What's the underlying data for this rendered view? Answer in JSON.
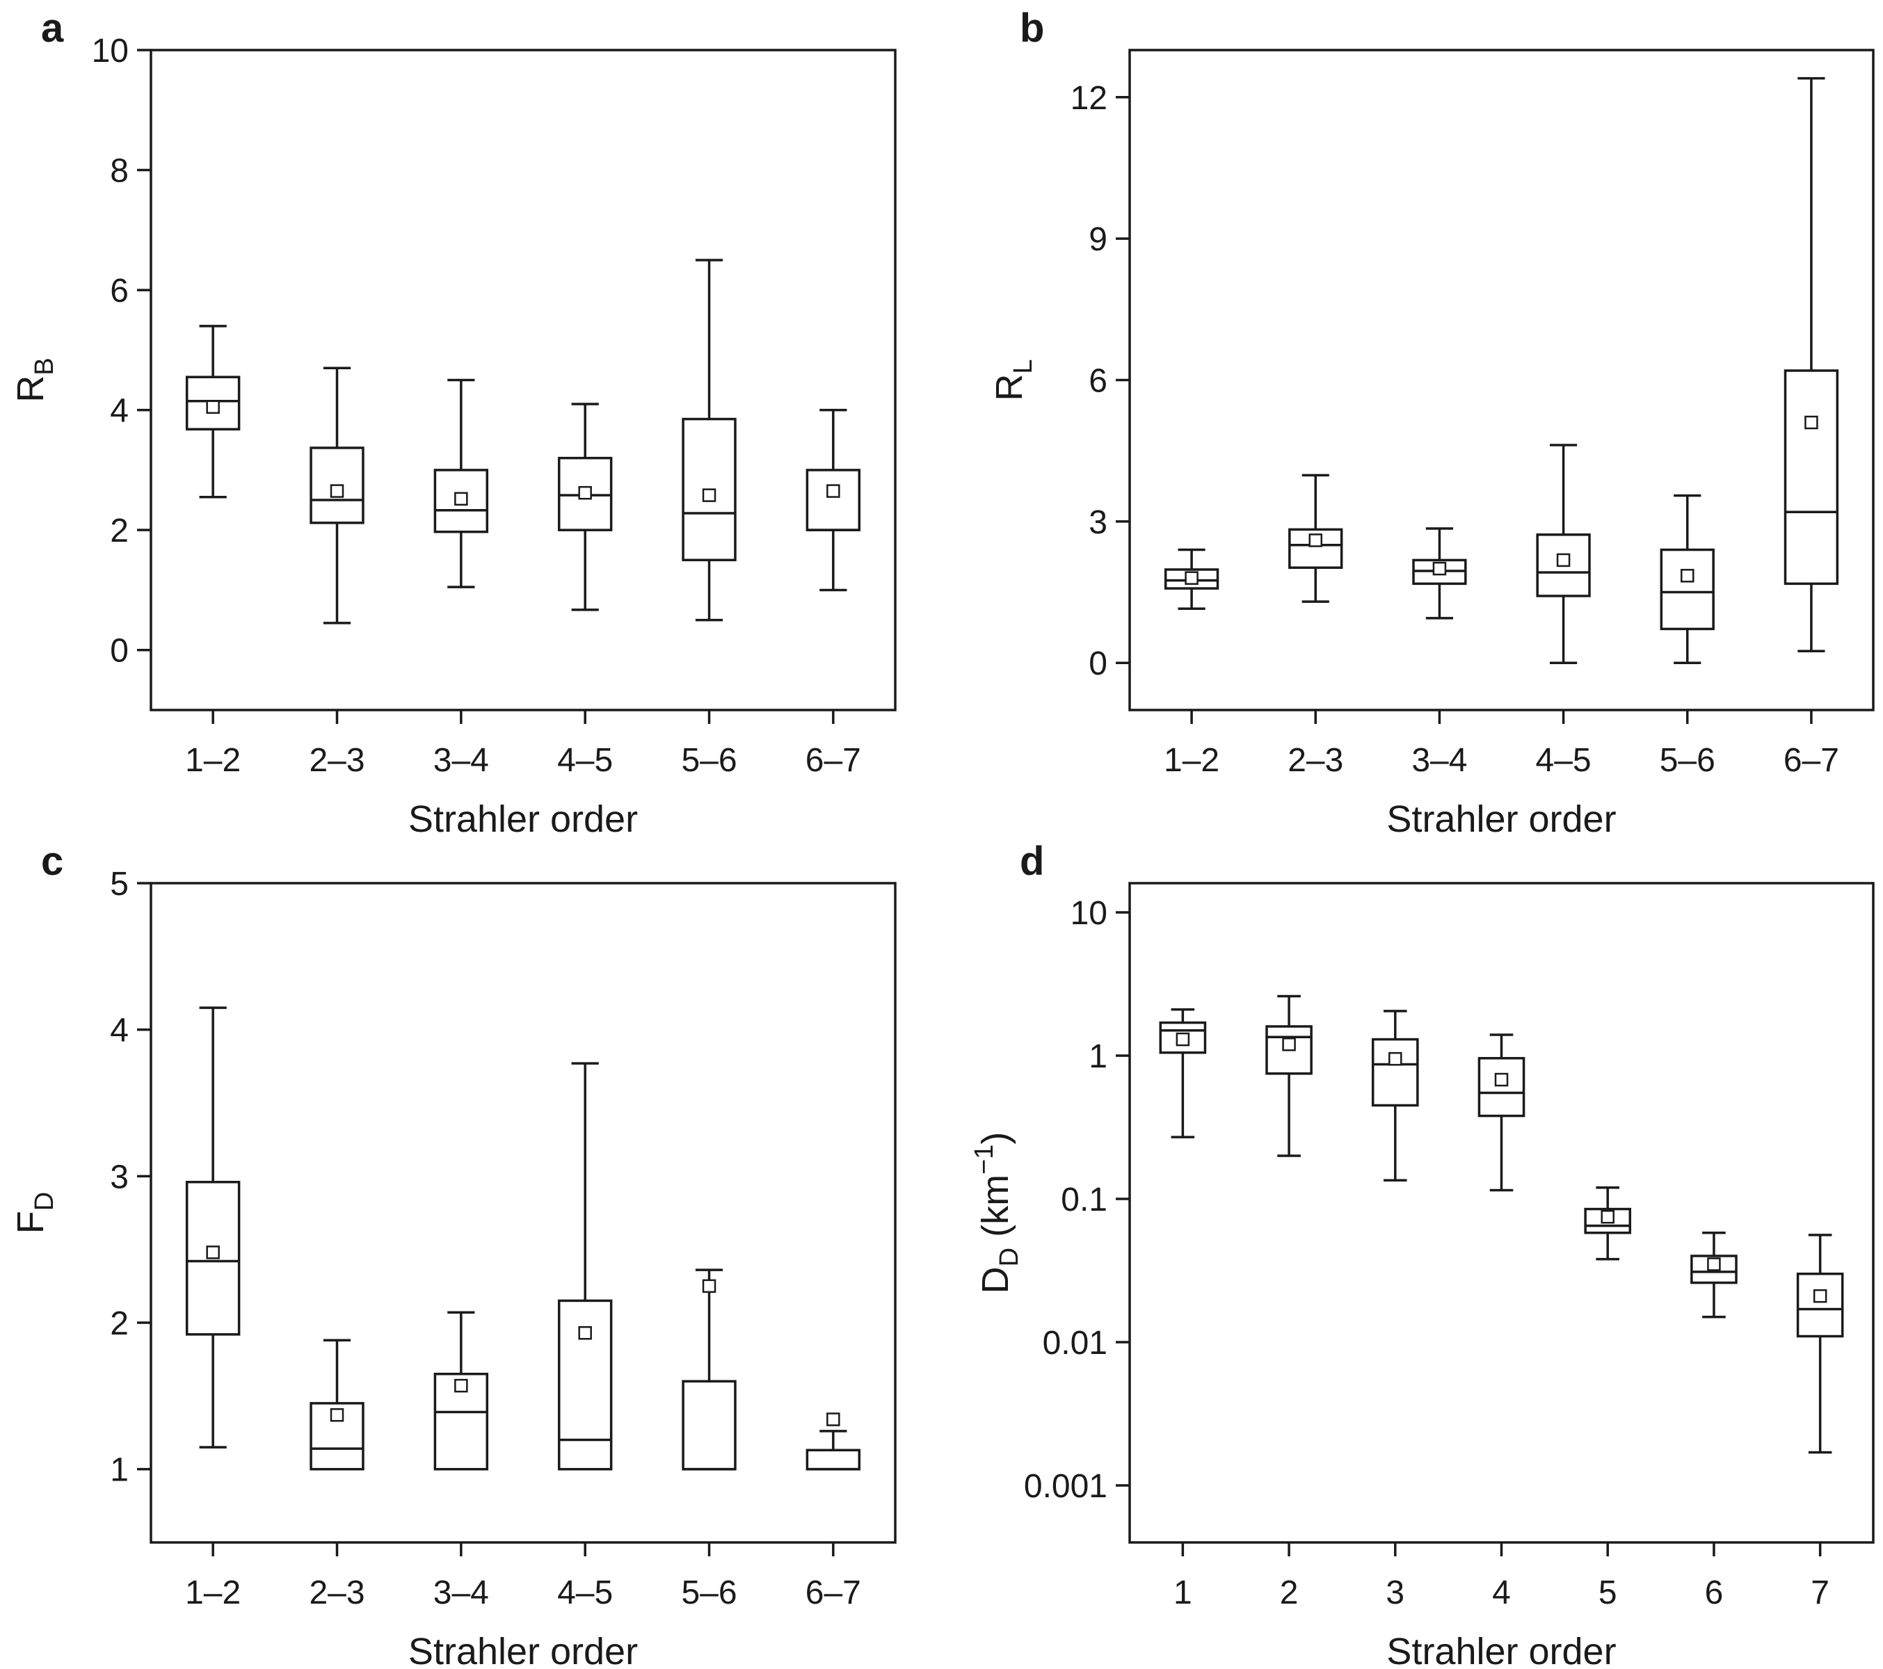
{
  "chart_data": [
    {
      "id": "a",
      "type": "box",
      "panel_label": "a",
      "ylabel_main": "R",
      "ylabel_sub": "B",
      "ylabel_tail": "",
      "xlabel": "Strahler order",
      "yscale": "linear",
      "ylim": [
        -1,
        10
      ],
      "yticks": [
        0,
        2,
        4,
        6,
        8,
        10
      ],
      "ytick_labels": [
        "0",
        "2",
        "4",
        "6",
        "8",
        "10"
      ],
      "categories": [
        "1–2",
        "2–3",
        "3–4",
        "4–5",
        "5–6",
        "6–7"
      ],
      "boxes": [
        {
          "min": 2.55,
          "q1": 3.68,
          "median": 4.15,
          "q3": 4.55,
          "max": 5.4,
          "mean": 4.05
        },
        {
          "min": 0.45,
          "q1": 2.12,
          "median": 2.5,
          "q3": 3.37,
          "max": 4.7,
          "mean": 2.65
        },
        {
          "min": 1.05,
          "q1": 1.97,
          "median": 2.33,
          "q3": 3.0,
          "max": 4.5,
          "mean": 2.52
        },
        {
          "min": 0.67,
          "q1": 2.0,
          "median": 2.58,
          "q3": 3.2,
          "max": 4.1,
          "mean": 2.62
        },
        {
          "min": 0.5,
          "q1": 1.5,
          "median": 2.28,
          "q3": 3.85,
          "max": 6.5,
          "mean": 2.58
        },
        {
          "min": 1.0,
          "q1": 2.0,
          "median": 2.0,
          "q3": 3.0,
          "max": 4.0,
          "mean": 2.65
        }
      ]
    },
    {
      "id": "b",
      "type": "box",
      "panel_label": "b",
      "ylabel_main": "R",
      "ylabel_sub": "L",
      "ylabel_tail": "",
      "xlabel": "Strahler order",
      "yscale": "linear",
      "ylim": [
        -1,
        13
      ],
      "yticks": [
        0,
        3,
        6,
        9,
        12
      ],
      "ytick_labels": [
        "0",
        "3",
        "6",
        "9",
        "12"
      ],
      "categories": [
        "1–2",
        "2–3",
        "3–4",
        "4–5",
        "5–6",
        "6–7"
      ],
      "boxes": [
        {
          "min": 1.15,
          "q1": 1.58,
          "median": 1.75,
          "q3": 1.98,
          "max": 2.4,
          "mean": 1.8
        },
        {
          "min": 1.3,
          "q1": 2.02,
          "median": 2.5,
          "q3": 2.83,
          "max": 3.98,
          "mean": 2.6
        },
        {
          "min": 0.95,
          "q1": 1.68,
          "median": 1.95,
          "q3": 2.18,
          "max": 2.85,
          "mean": 2.0
        },
        {
          "min": 0.0,
          "q1": 1.42,
          "median": 1.92,
          "q3": 2.72,
          "max": 4.62,
          "mean": 2.18
        },
        {
          "min": 0.0,
          "q1": 0.72,
          "median": 1.5,
          "q3": 2.4,
          "max": 3.55,
          "mean": 1.85
        },
        {
          "min": 0.25,
          "q1": 1.68,
          "median": 3.2,
          "q3": 6.2,
          "max": 12.4,
          "mean": 5.1
        }
      ]
    },
    {
      "id": "c",
      "type": "box",
      "panel_label": "c",
      "ylabel_main": "F",
      "ylabel_sub": "D",
      "ylabel_tail": "",
      "xlabel": "Strahler order",
      "yscale": "linear",
      "ylim": [
        0.5,
        5
      ],
      "yticks": [
        1,
        2,
        3,
        4,
        5
      ],
      "ytick_labels": [
        "1",
        "2",
        "3",
        "4",
        "5"
      ],
      "categories": [
        "1–2",
        "2–3",
        "3–4",
        "4–5",
        "5–6",
        "6–7"
      ],
      "boxes": [
        {
          "min": 1.15,
          "q1": 1.92,
          "median": 2.42,
          "q3": 2.96,
          "max": 4.15,
          "mean": 2.48
        },
        {
          "min": 1.0,
          "q1": 1.0,
          "median": 1.14,
          "q3": 1.45,
          "max": 1.88,
          "mean": 1.37
        },
        {
          "min": 1.0,
          "q1": 1.0,
          "median": 1.39,
          "q3": 1.65,
          "max": 2.07,
          "mean": 1.57
        },
        {
          "min": 1.0,
          "q1": 1.0,
          "median": 1.2,
          "q3": 2.15,
          "max": 3.77,
          "mean": 1.93
        },
        {
          "min": 1.0,
          "q1": 1.0,
          "median": 1.0,
          "q3": 1.6,
          "max": 2.36,
          "mean": 2.25
        },
        {
          "min": 1.0,
          "q1": 1.0,
          "median": 1.0,
          "q3": 1.13,
          "max": 1.26,
          "mean": 1.34
        }
      ]
    },
    {
      "id": "d",
      "type": "box",
      "panel_label": "d",
      "ylabel_main": "D",
      "ylabel_sub": "D",
      "ylabel_tail": " (km",
      "ylabel_sup": "−1",
      "ylabel_end": ")",
      "xlabel": "Strahler order",
      "yscale": "log",
      "ylim": [
        0.0004,
        16
      ],
      "yticks": [
        0.001,
        0.01,
        0.1,
        1,
        10
      ],
      "ytick_labels": [
        "0.001",
        "0.01",
        "0.1",
        "1",
        "10"
      ],
      "categories": [
        "1",
        "2",
        "3",
        "4",
        "5",
        "6",
        "7"
      ],
      "boxes": [
        {
          "min": 0.27,
          "q1": 1.05,
          "median": 1.5,
          "q3": 1.7,
          "max": 2.1,
          "mean": 1.3
        },
        {
          "min": 0.2,
          "q1": 0.75,
          "median": 1.35,
          "q3": 1.6,
          "max": 2.6,
          "mean": 1.2
        },
        {
          "min": 0.135,
          "q1": 0.45,
          "median": 0.87,
          "q3": 1.3,
          "max": 2.05,
          "mean": 0.95
        },
        {
          "min": 0.115,
          "q1": 0.38,
          "median": 0.55,
          "q3": 0.96,
          "max": 1.4,
          "mean": 0.68
        },
        {
          "min": 0.038,
          "q1": 0.058,
          "median": 0.065,
          "q3": 0.085,
          "max": 0.12,
          "mean": 0.075
        },
        {
          "min": 0.015,
          "q1": 0.026,
          "median": 0.031,
          "q3": 0.04,
          "max": 0.058,
          "mean": 0.035
        },
        {
          "min": 0.0017,
          "q1": 0.011,
          "median": 0.017,
          "q3": 0.03,
          "max": 0.056,
          "mean": 0.021
        }
      ]
    }
  ]
}
